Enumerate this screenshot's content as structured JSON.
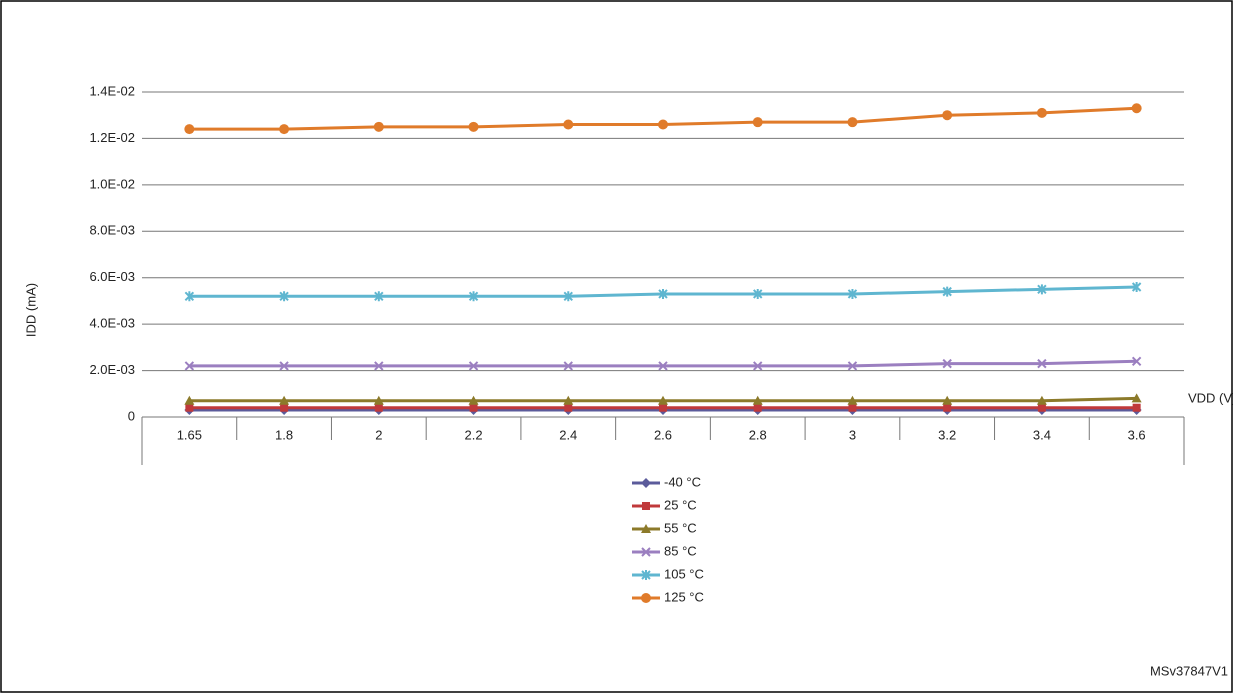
{
  "chart_data": {
    "type": "line",
    "x_label": "VDD (V)",
    "y_label": "IDD (mA)",
    "annotation": "MSv37847V1",
    "categories": [
      "1.65",
      "1.8",
      "2",
      "2.2",
      "2.4",
      "2.6",
      "2.8",
      "3",
      "3.2",
      "3.4",
      "3.6"
    ],
    "ylim": [
      0,
      0.014
    ],
    "yticks": [
      0,
      {
        "value": 0.002,
        "label": "2.0E-03"
      },
      {
        "value": 0.004,
        "label": "4.0E-03"
      },
      {
        "value": 0.006,
        "label": "6.0E-03"
      },
      {
        "value": 0.008,
        "label": "8.0E-03"
      },
      {
        "value": 0.01,
        "label": "1.0E-02"
      },
      {
        "value": 0.012,
        "label": "1.2E-02"
      },
      {
        "value": 0.014,
        "label": "1.4E-02"
      }
    ],
    "grid": true,
    "series": [
      {
        "name": "-40 °C",
        "color": "#5b5b9b",
        "marker": "diamond",
        "values": [
          0.0003,
          0.0003,
          0.0003,
          0.0003,
          0.0003,
          0.0003,
          0.0003,
          0.0003,
          0.0003,
          0.0003,
          0.0003
        ]
      },
      {
        "name": "25 °C",
        "color": "#c0393b",
        "marker": "square",
        "values": [
          0.0004,
          0.0004,
          0.0004,
          0.0004,
          0.0004,
          0.0004,
          0.0004,
          0.0004,
          0.0004,
          0.0004,
          0.0004
        ]
      },
      {
        "name": "55 °C",
        "color": "#8c7a2a",
        "marker": "triangle",
        "values": [
          0.0007,
          0.0007,
          0.0007,
          0.0007,
          0.0007,
          0.0007,
          0.0007,
          0.0007,
          0.0007,
          0.0007,
          0.0008
        ]
      },
      {
        "name": "85 °C",
        "color": "#9b7fc0",
        "marker": "x",
        "values": [
          0.0022,
          0.0022,
          0.0022,
          0.0022,
          0.0022,
          0.0022,
          0.0022,
          0.0022,
          0.0023,
          0.0023,
          0.0024
        ]
      },
      {
        "name": "105 °C",
        "color": "#5fb6d0",
        "marker": "star",
        "values": [
          0.0052,
          0.0052,
          0.0052,
          0.0052,
          0.0052,
          0.0053,
          0.0053,
          0.0053,
          0.0054,
          0.0055,
          0.0056
        ]
      },
      {
        "name": "125 °C",
        "color": "#e07b2a",
        "marker": "circle",
        "values": [
          0.0124,
          0.0124,
          0.0125,
          0.0125,
          0.0126,
          0.0126,
          0.0127,
          0.0127,
          0.013,
          0.0131,
          0.0133
        ]
      }
    ]
  }
}
